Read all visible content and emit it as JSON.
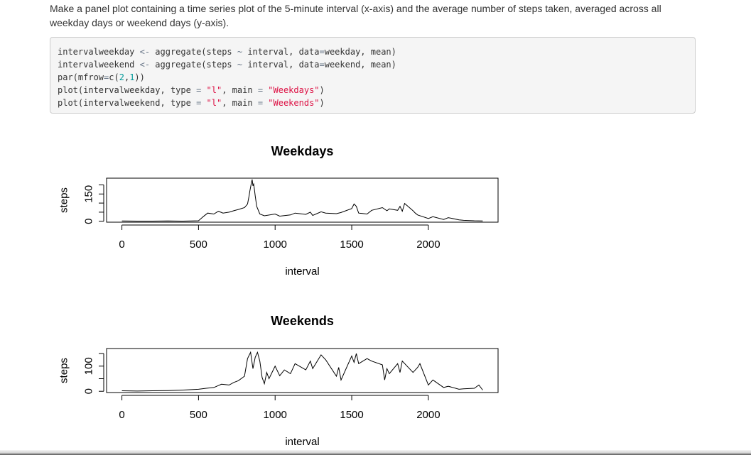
{
  "prose": {
    "intro": "Make a panel plot containing a time series plot of the 5-minute interval (x-axis) and the average number of steps taken, averaged across all weekday days or weekend days (y-axis)."
  },
  "code": {
    "lines": [
      [
        [
          "intervalweekday ",
          ""
        ],
        [
          "<-",
          "op"
        ],
        [
          " aggregate(steps ",
          ""
        ],
        [
          "~",
          "op"
        ],
        [
          " interval, data",
          ""
        ],
        [
          "=",
          "op"
        ],
        [
          "weekday, mean)",
          ""
        ]
      ],
      [
        [
          "intervalweekend ",
          ""
        ],
        [
          "<-",
          "op"
        ],
        [
          " aggregate(steps ",
          ""
        ],
        [
          "~",
          "op"
        ],
        [
          " interval, data",
          ""
        ],
        [
          "=",
          "op"
        ],
        [
          "weekend, mean)",
          ""
        ]
      ],
      [
        [
          "par(mfrow",
          ""
        ],
        [
          "=",
          "op"
        ],
        [
          "c(",
          ""
        ],
        [
          "2",
          "num"
        ],
        [
          ",",
          ""
        ],
        [
          "1",
          "num"
        ],
        [
          "))",
          ""
        ]
      ],
      [
        [
          "plot(intervalweekday, type ",
          ""
        ],
        [
          "=",
          "op"
        ],
        [
          " ",
          ""
        ],
        [
          "\"l\"",
          "str"
        ],
        [
          ", main ",
          ""
        ],
        [
          "=",
          "op"
        ],
        [
          " ",
          ""
        ],
        [
          "\"Weekdays\"",
          "str"
        ],
        [
          ")",
          ""
        ]
      ],
      [
        [
          "plot(intervalweekend, type ",
          ""
        ],
        [
          "=",
          "op"
        ],
        [
          " ",
          ""
        ],
        [
          "\"l\"",
          "str"
        ],
        [
          ", main ",
          ""
        ],
        [
          "=",
          "op"
        ],
        [
          " ",
          ""
        ],
        [
          "\"Weekends\"",
          "str"
        ],
        [
          ")",
          ""
        ]
      ]
    ]
  },
  "chart_data": [
    {
      "type": "line",
      "title": "Weekdays",
      "xlabel": "interval",
      "ylabel": "steps",
      "xlim": [
        -100,
        2455
      ],
      "ylim": [
        -5,
        237
      ],
      "x_ticks": [
        0,
        500,
        1000,
        1500,
        2000
      ],
      "y_ticks": [
        0,
        50,
        100,
        150,
        200
      ],
      "y_tick_labels": [
        "0",
        "",
        "",
        "150",
        ""
      ],
      "grid": false,
      "x": [
        0,
        100,
        200,
        300,
        400,
        500,
        530,
        560,
        600,
        630,
        660,
        700,
        730,
        760,
        800,
        820,
        830,
        835,
        845,
        850,
        855,
        860,
        865,
        870,
        880,
        900,
        930,
        1000,
        1030,
        1100,
        1130,
        1200,
        1230,
        1245,
        1300,
        1330,
        1400,
        1430,
        1500,
        1515,
        1530,
        1545,
        1600,
        1630,
        1700,
        1730,
        1745,
        1800,
        1815,
        1830,
        1845,
        1900,
        1915,
        1930,
        2000,
        2030,
        2100,
        2130,
        2200,
        2230,
        2300,
        2355
      ],
      "y": [
        2,
        1,
        1,
        2,
        1,
        3,
        25,
        45,
        40,
        55,
        45,
        50,
        58,
        65,
        75,
        95,
        140,
        165,
        210,
        230,
        195,
        205,
        175,
        140,
        82,
        40,
        30,
        40,
        28,
        35,
        45,
        38,
        50,
        32,
        52,
        45,
        42,
        48,
        70,
        95,
        82,
        45,
        40,
        60,
        75,
        58,
        68,
        60,
        82,
        55,
        98,
        58,
        45,
        35,
        15,
        25,
        10,
        20,
        8,
        5,
        3,
        2
      ]
    },
    {
      "type": "line",
      "title": "Weekends",
      "xlabel": "interval",
      "ylabel": "steps",
      "xlim": [
        -100,
        2455
      ],
      "ylim": [
        -5,
        170
      ],
      "x_ticks": [
        0,
        500,
        1000,
        1500,
        2000
      ],
      "y_ticks": [
        0,
        50,
        100,
        150
      ],
      "y_tick_labels": [
        "0",
        "",
        "100",
        ""
      ],
      "grid": false,
      "x": [
        0,
        100,
        200,
        300,
        400,
        500,
        550,
        600,
        650,
        700,
        730,
        760,
        800,
        820,
        840,
        855,
        870,
        885,
        900,
        915,
        930,
        945,
        960,
        1000,
        1030,
        1060,
        1100,
        1130,
        1200,
        1230,
        1245,
        1300,
        1330,
        1400,
        1415,
        1430,
        1500,
        1515,
        1530,
        1545,
        1600,
        1630,
        1700,
        1715,
        1730,
        1745,
        1800,
        1815,
        1830,
        1900,
        1930,
        1945,
        2000,
        2030,
        2100,
        2130,
        2200,
        2230,
        2300,
        2330,
        2355
      ],
      "y": [
        2,
        1,
        2,
        3,
        5,
        8,
        12,
        15,
        28,
        25,
        35,
        42,
        60,
        130,
        155,
        90,
        135,
        155,
        120,
        55,
        30,
        75,
        50,
        100,
        62,
        85,
        70,
        110,
        85,
        120,
        90,
        145,
        125,
        60,
        95,
        45,
        140,
        115,
        150,
        110,
        130,
        120,
        105,
        45,
        90,
        70,
        110,
        75,
        120,
        75,
        95,
        110,
        25,
        45,
        15,
        20,
        8,
        10,
        12,
        25,
        5
      ]
    }
  ]
}
